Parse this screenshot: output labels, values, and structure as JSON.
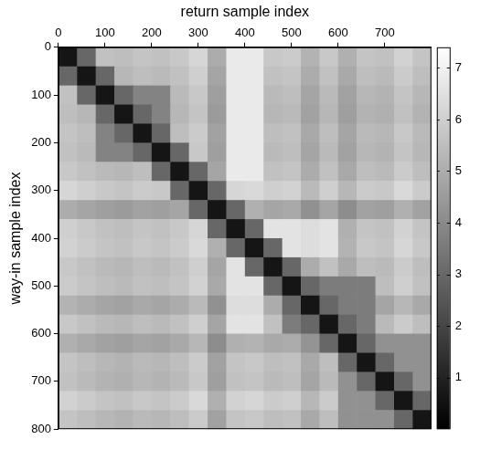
{
  "chart_data": {
    "type": "heatmap",
    "x_label": "return sample index",
    "y_label": "way-in sample index",
    "xlim": [
      0,
      800
    ],
    "xticks": [
      0,
      100,
      200,
      300,
      400,
      500,
      600,
      700
    ],
    "ylim": [
      0,
      800
    ],
    "yticks": [
      0,
      100,
      200,
      300,
      400,
      500,
      600,
      700,
      800
    ],
    "color": "gray",
    "x": [
      20,
      60,
      100,
      140,
      180,
      220,
      260,
      300,
      340,
      380,
      420,
      460,
      500,
      540,
      580,
      620,
      660,
      700,
      740,
      780
    ],
    "y": [
      20,
      60,
      100,
      140,
      180,
      220,
      260,
      300,
      340,
      380,
      420,
      460,
      500,
      540,
      580,
      620,
      660,
      700,
      740,
      780
    ],
    "cells": [
      [
        0.6,
        3.0,
        5.6,
        5.5,
        5.7,
        5.6,
        5.8,
        6.2,
        5.0,
        6.8,
        6.8,
        5.8,
        5.9,
        5.2,
        5.8,
        5.1,
        5.7,
        5.6,
        6.1,
        5.7
      ],
      [
        3.0,
        0.6,
        3.0,
        5.3,
        5.5,
        5.4,
        5.6,
        6.0,
        4.8,
        6.8,
        6.8,
        5.6,
        5.7,
        5.0,
        5.6,
        4.9,
        5.5,
        5.4,
        5.9,
        5.5
      ],
      [
        5.6,
        3.0,
        0.6,
        3.0,
        3.8,
        3.8,
        5.4,
        5.8,
        4.6,
        6.8,
        6.8,
        5.4,
        5.5,
        4.8,
        5.4,
        4.7,
        5.3,
        5.2,
        5.7,
        5.3
      ],
      [
        5.5,
        5.3,
        3.0,
        0.6,
        3.0,
        3.8,
        5.3,
        5.7,
        4.5,
        6.8,
        6.8,
        5.3,
        5.4,
        4.7,
        5.3,
        4.6,
        5.2,
        5.1,
        5.6,
        5.2
      ],
      [
        5.7,
        5.5,
        3.8,
        3.0,
        0.6,
        3.0,
        5.5,
        5.9,
        4.7,
        6.8,
        6.8,
        5.5,
        5.6,
        4.9,
        5.5,
        4.8,
        5.4,
        5.3,
        5.8,
        5.4
      ],
      [
        5.6,
        5.4,
        3.8,
        3.8,
        3.0,
        0.6,
        3.0,
        5.8,
        4.6,
        6.8,
        6.8,
        5.4,
        5.5,
        4.8,
        5.4,
        4.7,
        5.3,
        5.2,
        5.7,
        5.3
      ],
      [
        5.8,
        5.6,
        5.4,
        5.3,
        5.5,
        3.0,
        0.6,
        3.0,
        4.8,
        6.8,
        6.8,
        5.6,
        5.7,
        5.0,
        5.6,
        4.9,
        5.5,
        5.4,
        5.9,
        5.5
      ],
      [
        6.2,
        6.0,
        5.8,
        5.7,
        5.9,
        5.8,
        3.0,
        0.6,
        3.0,
        6.2,
        6.3,
        6.0,
        6.1,
        5.4,
        6.0,
        5.3,
        5.9,
        5.8,
        6.3,
        5.9
      ],
      [
        5.0,
        4.8,
        4.6,
        4.5,
        4.7,
        4.6,
        4.8,
        3.0,
        0.6,
        3.0,
        5.1,
        4.8,
        4.9,
        4.2,
        4.8,
        4.1,
        4.7,
        4.6,
        5.1,
        4.7
      ],
      [
        6.0,
        5.8,
        5.6,
        5.5,
        5.7,
        5.6,
        5.8,
        6.2,
        3.0,
        0.6,
        3.0,
        6.6,
        6.6,
        6.4,
        6.6,
        5.1,
        5.7,
        5.6,
        6.1,
        5.7
      ],
      [
        6.1,
        5.9,
        5.7,
        5.6,
        5.8,
        5.7,
        5.9,
        6.3,
        5.1,
        3.0,
        0.6,
        3.0,
        6.6,
        6.4,
        6.6,
        5.2,
        5.8,
        5.7,
        6.2,
        5.8
      ],
      [
        5.8,
        5.6,
        5.4,
        5.3,
        5.5,
        5.4,
        5.6,
        6.0,
        4.8,
        6.6,
        3.0,
        0.6,
        3.0,
        5.0,
        5.6,
        4.9,
        5.5,
        5.4,
        5.9,
        5.5
      ],
      [
        5.9,
        5.7,
        5.5,
        5.4,
        5.6,
        5.5,
        5.7,
        6.1,
        4.9,
        6.6,
        6.6,
        3.0,
        0.6,
        3.0,
        3.6,
        3.6,
        3.6,
        5.5,
        6.0,
        5.6
      ],
      [
        5.2,
        5.0,
        4.8,
        4.7,
        4.9,
        4.8,
        5.0,
        5.4,
        4.2,
        6.4,
        6.4,
        5.0,
        3.0,
        0.6,
        3.0,
        3.6,
        3.6,
        4.8,
        5.3,
        4.9
      ],
      [
        5.8,
        5.6,
        5.4,
        5.3,
        5.5,
        5.4,
        5.6,
        6.0,
        4.8,
        6.6,
        6.6,
        5.6,
        3.6,
        3.0,
        0.6,
        3.0,
        3.6,
        5.4,
        5.9,
        5.5
      ],
      [
        5.1,
        4.9,
        4.7,
        4.6,
        4.8,
        4.7,
        4.9,
        5.3,
        4.1,
        5.1,
        5.2,
        4.9,
        5.0,
        4.3,
        3.0,
        0.6,
        3.0,
        4.2,
        4.2,
        4.2
      ],
      [
        5.7,
        5.5,
        5.3,
        5.2,
        5.4,
        5.3,
        5.5,
        5.9,
        4.7,
        5.7,
        5.8,
        5.5,
        5.6,
        4.9,
        5.5,
        3.0,
        0.6,
        3.0,
        4.2,
        4.2
      ],
      [
        5.6,
        5.4,
        5.2,
        5.1,
        5.3,
        5.2,
        5.4,
        5.8,
        4.6,
        5.6,
        5.7,
        5.4,
        5.5,
        4.8,
        5.4,
        4.2,
        3.0,
        0.6,
        3.0,
        4.2
      ],
      [
        6.1,
        5.9,
        5.7,
        5.6,
        5.8,
        5.7,
        5.9,
        6.3,
        5.1,
        6.1,
        6.2,
        5.9,
        6.0,
        5.3,
        5.9,
        4.2,
        4.2,
        3.0,
        0.6,
        3.0
      ],
      [
        5.7,
        5.5,
        5.3,
        5.2,
        5.4,
        5.3,
        5.5,
        5.9,
        4.7,
        5.7,
        5.8,
        5.5,
        5.6,
        4.9,
        5.5,
        4.2,
        4.2,
        4.2,
        3.0,
        0.6
      ]
    ],
    "colorbar": {
      "range": [
        0,
        7.4
      ],
      "ticks": [
        1,
        2,
        3,
        4,
        5,
        6,
        7
      ]
    }
  }
}
